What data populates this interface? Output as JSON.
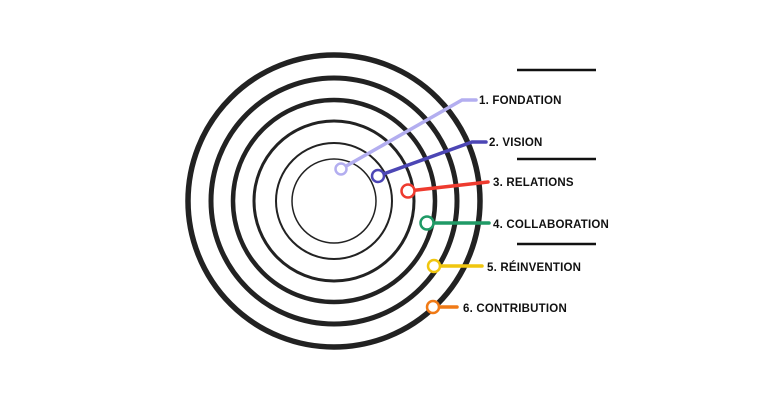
{
  "colors": {
    "rings": "#222222",
    "divider": "#111111",
    "stage_1": "#b3aef0",
    "stage_2": "#4c46b5",
    "stage_3": "#ee3b2f",
    "stage_4": "#1f9a66",
    "stage_5": "#f0c60f",
    "stage_6": "#f07a16"
  },
  "stages": [
    {
      "label": "1. FONDATION"
    },
    {
      "label": "2. VISION"
    },
    {
      "label": "3. RELATIONS"
    },
    {
      "label": "4. COLLABORATION"
    },
    {
      "label": "5. RÉINVENTION"
    },
    {
      "label": "6. CONTRIBUTION"
    }
  ]
}
